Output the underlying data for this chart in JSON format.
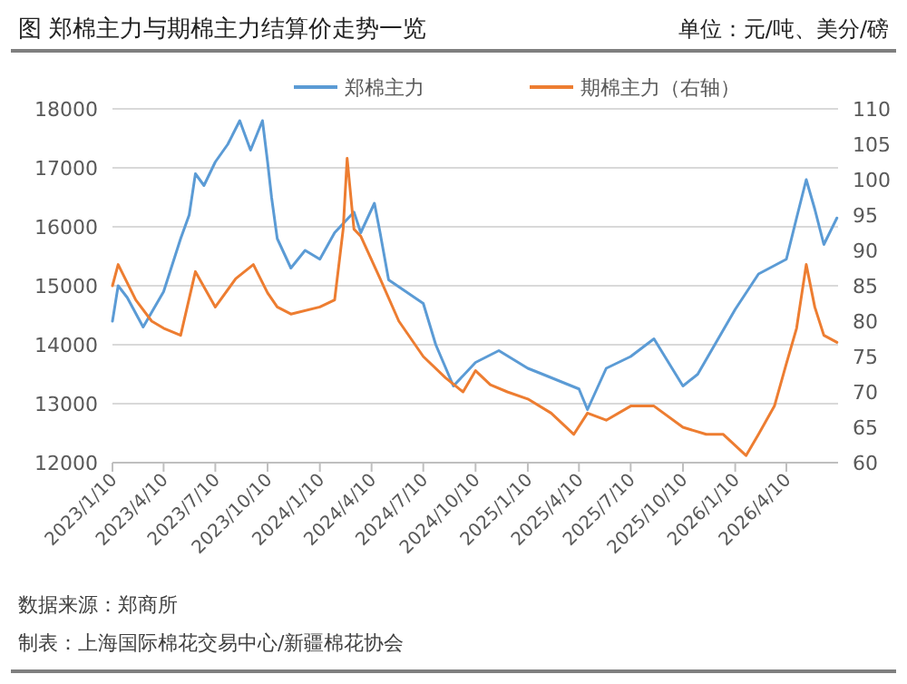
{
  "chart_data": {
    "type": "line",
    "title": "图 郑棉主力与期棉主力结算价走势一览",
    "subtitle": "单位：元/吨、美分/磅",
    "annotations": [
      "数据来源：郑商所",
      "制表：上海国际棉花交易中心/新疆棉花协会"
    ],
    "legend": "top",
    "grid": "y",
    "marker": "none",
    "line_style": "solid",
    "xlim": [
      "2023-01-10",
      "2026-07-10"
    ],
    "xticks": [
      {
        "value": "2023-01-10",
        "label": "2023/1/10"
      },
      {
        "value": "2023-04-10",
        "label": "2023/4/10"
      },
      {
        "value": "2023-07-10",
        "label": "2023/7/10"
      },
      {
        "value": "2023-10-10",
        "label": "2023/10/10"
      },
      {
        "value": "2024-01-10",
        "label": "2024/1/10"
      },
      {
        "value": "2024-04-10",
        "label": "2024/4/10"
      },
      {
        "value": "2024-07-10",
        "label": "2024/7/10"
      },
      {
        "value": "2024-10-10",
        "label": "2024/10/10"
      },
      {
        "value": "2025-01-10",
        "label": "2025/1/10"
      },
      {
        "value": "2025-04-10",
        "label": "2025/4/10"
      },
      {
        "value": "2025-07-10",
        "label": "2025/7/10"
      },
      {
        "value": "2025-10-10",
        "label": "2025/10/10"
      },
      {
        "value": "2026-01-10",
        "label": "2026/1/10"
      },
      {
        "value": "2026-04-10",
        "label": "2026/4/10"
      }
    ],
    "ylim": [
      12000,
      18000
    ],
    "yticks": [
      12000,
      13000,
      14000,
      15000,
      16000,
      17000,
      18000
    ],
    "y2lim": [
      60,
      110
    ],
    "y2ticks": [
      60,
      65,
      70,
      75,
      80,
      85,
      90,
      95,
      100,
      105,
      110
    ],
    "series": [
      {
        "name": "郑棉主力",
        "color": "#5b9bd5",
        "x": [
          "2023-01-10",
          "2023-01-20",
          "2023-02-05",
          "2023-03-05",
          "2023-04-10",
          "2023-05-10",
          "2023-05-25",
          "2023-06-05",
          "2023-06-20",
          "2023-07-10",
          "2023-08-01",
          "2023-08-22",
          "2023-09-10",
          "2023-10-01",
          "2023-10-10",
          "2023-10-17",
          "2023-10-27",
          "2023-11-20",
          "2023-12-15",
          "2024-01-10",
          "2024-02-05",
          "2024-03-10",
          "2024-03-22",
          "2024-04-15",
          "2024-04-25",
          "2024-05-10",
          "2024-07-10",
          "2024-08-01",
          "2024-09-01",
          "2024-10-10",
          "2024-11-20",
          "2025-01-10",
          "2025-02-05",
          "2025-04-10",
          "2025-04-25",
          "2025-05-28",
          "2025-07-10",
          "2025-08-20",
          "2025-10-10",
          "2025-11-05",
          "2026-01-10",
          "2026-02-20",
          "2026-04-10",
          "2026-04-28",
          "2026-05-15",
          "2026-05-30",
          "2026-06-15",
          "2026-07-08"
        ],
        "values": [
          14400,
          15000,
          14800,
          14300,
          14900,
          15800,
          16200,
          16900,
          16700,
          17100,
          17400,
          17800,
          17300,
          17800,
          17100,
          16500,
          15800,
          15300,
          15600,
          15450,
          15900,
          16250,
          15900,
          16400,
          15900,
          15100,
          14700,
          14000,
          13300,
          13700,
          13900,
          13600,
          13500,
          13250,
          12900,
          13600,
          13800,
          14100,
          13300,
          13500,
          14600,
          15200,
          15450,
          16150,
          16800,
          16300,
          15700,
          16150
        ]
      },
      {
        "name": "期棉主力（右轴）",
        "color": "#ed7d31",
        "axis": "y2",
        "x": [
          "2023-01-10",
          "2023-01-20",
          "2023-02-20",
          "2023-03-20",
          "2023-04-10",
          "2023-05-10",
          "2023-06-05",
          "2023-07-10",
          "2023-08-15",
          "2023-09-15",
          "2023-10-10",
          "2023-10-27",
          "2023-11-20",
          "2024-01-10",
          "2024-02-05",
          "2024-02-20",
          "2024-02-27",
          "2024-03-10",
          "2024-03-22",
          "2024-04-25",
          "2024-05-28",
          "2024-07-10",
          "2024-08-18",
          "2024-09-18",
          "2024-10-10",
          "2024-11-05",
          "2024-12-05",
          "2025-01-10",
          "2025-02-20",
          "2025-04-01",
          "2025-04-25",
          "2025-05-28",
          "2025-07-10",
          "2025-08-20",
          "2025-10-10",
          "2025-11-20",
          "2025-12-20",
          "2026-01-29",
          "2026-02-20",
          "2026-03-20",
          "2026-04-10",
          "2026-04-28",
          "2026-05-15",
          "2026-05-30",
          "2026-06-15",
          "2026-07-08"
        ],
        "values": [
          85,
          88,
          83,
          80,
          79,
          78,
          87,
          82,
          86,
          88,
          84,
          82,
          81,
          82,
          83,
          93,
          103,
          93,
          92,
          86,
          80,
          75,
          72,
          70,
          73,
          71,
          70,
          69,
          67,
          64,
          67,
          66,
          68,
          68,
          65,
          64,
          64,
          61,
          64,
          68,
          74,
          79,
          88,
          82,
          78,
          77
        ]
      }
    ]
  }
}
